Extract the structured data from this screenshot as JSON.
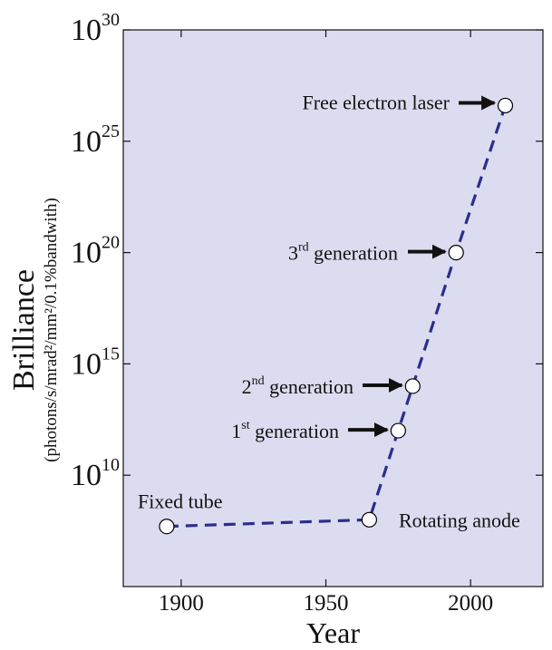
{
  "chart_data": {
    "type": "line",
    "title": "",
    "xlabel": "Year",
    "ylabel": "Brilliance",
    "ylabel_units": "(photons/s/mrad²/mm²/0.1%bandwith)",
    "x_scale": "linear",
    "y_scale": "log",
    "xlim": [
      1880,
      2025
    ],
    "ylim": [
      100000.0,
      1e+30
    ],
    "x_ticks": [
      1900,
      1950,
      2000
    ],
    "x_tick_labels": [
      "1900",
      "1950",
      "2000"
    ],
    "y_ticks": [
      10000000000.0,
      1000000000000000.0,
      1e+20,
      1e+25,
      1e+30
    ],
    "y_tick_labels": [
      {
        "base": "10",
        "exp": "10"
      },
      {
        "base": "10",
        "exp": "15"
      },
      {
        "base": "10",
        "exp": "20"
      },
      {
        "base": "10",
        "exp": "25"
      },
      {
        "base": "10",
        "exp": "30"
      }
    ],
    "grid": false,
    "colors": {
      "plot_background": "#dcdcf0",
      "line": "#2b2e8c",
      "marker_fill": "#ffffff",
      "marker_edge": "#000000",
      "arrow": "#111111"
    },
    "series": [
      {
        "line_style": "dashed",
        "marker": "open-circle",
        "points": [
          {
            "x": 1895,
            "y": 50000000.0,
            "label": "Fixed tube"
          },
          {
            "x": 1965,
            "y": 100000000.0,
            "label": "Rotating anode"
          },
          {
            "x": 1975,
            "y": 1000000000000.0,
            "label": "1",
            "label_sup": "st",
            "label_rest": " generation"
          },
          {
            "x": 1980,
            "y": 100000000000000.0,
            "label": "2",
            "label_sup": "nd",
            "label_rest": " generation"
          },
          {
            "x": 1995,
            "y": 1e+20,
            "label": "3",
            "label_sup": "rd",
            "label_rest": " generation"
          },
          {
            "x": 2012,
            "y": 4e+26,
            "label": "Free electron laser"
          }
        ]
      }
    ]
  }
}
